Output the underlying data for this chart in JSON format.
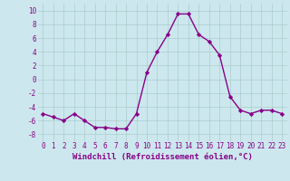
{
  "x": [
    0,
    1,
    2,
    3,
    4,
    5,
    6,
    7,
    8,
    9,
    10,
    11,
    12,
    13,
    14,
    15,
    16,
    17,
    18,
    19,
    20,
    21,
    22,
    23
  ],
  "y": [
    -5.0,
    -5.5,
    -6.0,
    -5.0,
    -6.0,
    -7.0,
    -7.0,
    -7.2,
    -7.2,
    -5.0,
    1.0,
    4.0,
    6.5,
    9.5,
    9.5,
    6.5,
    5.5,
    3.5,
    -2.5,
    -4.5,
    -5.0,
    -4.5,
    -4.5,
    -5.0
  ],
  "line_color": "#880088",
  "marker": "D",
  "markersize": 2.2,
  "linewidth": 1.0,
  "xlabel": "Windchill (Refroidissement éolien,°C)",
  "ylim": [
    -9,
    11
  ],
  "xlim": [
    -0.5,
    23.5
  ],
  "yticks": [
    -8,
    -6,
    -4,
    -2,
    0,
    2,
    4,
    6,
    8,
    10
  ],
  "xticks": [
    0,
    1,
    2,
    3,
    4,
    5,
    6,
    7,
    8,
    9,
    10,
    11,
    12,
    13,
    14,
    15,
    16,
    17,
    18,
    19,
    20,
    21,
    22,
    23
  ],
  "xtick_labels": [
    "0",
    "1",
    "2",
    "3",
    "4",
    "5",
    "6",
    "7",
    "8",
    "9",
    "10",
    "11",
    "12",
    "13",
    "14",
    "15",
    "16",
    "17",
    "18",
    "19",
    "20",
    "21",
    "22",
    "23"
  ],
  "bg_color": "#cce8ee",
  "grid_color": "#aacccc",
  "tick_fontsize": 5.5,
  "xlabel_fontsize": 6.5
}
